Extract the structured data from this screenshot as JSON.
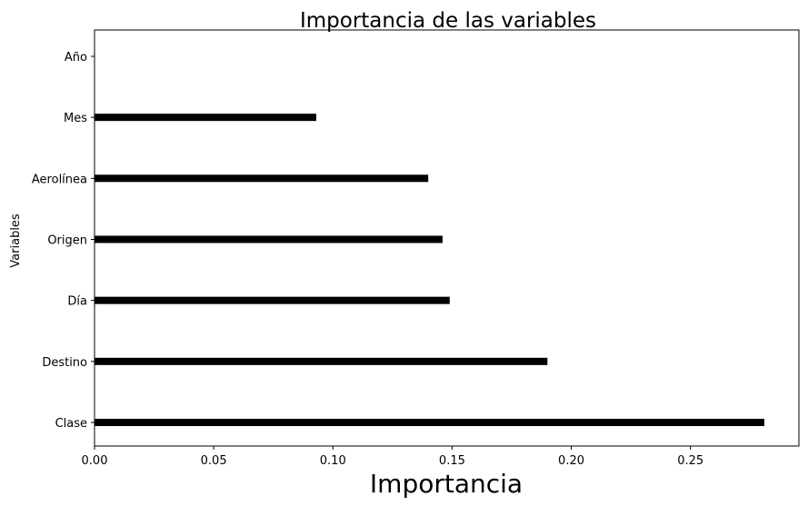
{
  "chart_data": {
    "type": "bar",
    "orientation": "horizontal",
    "title": "Importancia de las variables",
    "xlabel": "Importancia",
    "ylabel": "Variables",
    "categories": [
      "Clase",
      "Destino",
      "Día",
      "Origen",
      "Aerolínea",
      "Mes",
      "Año"
    ],
    "values": [
      0.281,
      0.19,
      0.149,
      0.146,
      0.14,
      0.093,
      0.0
    ],
    "xlim": [
      0.0,
      0.2955
    ],
    "xticks": [
      0.0,
      0.05,
      0.1,
      0.15,
      0.2,
      0.25
    ],
    "xtick_labels": [
      "0.00",
      "0.05",
      "0.10",
      "0.15",
      "0.20",
      "0.25"
    ],
    "bar_color": "#000000",
    "grid": false,
    "legend": "none"
  }
}
